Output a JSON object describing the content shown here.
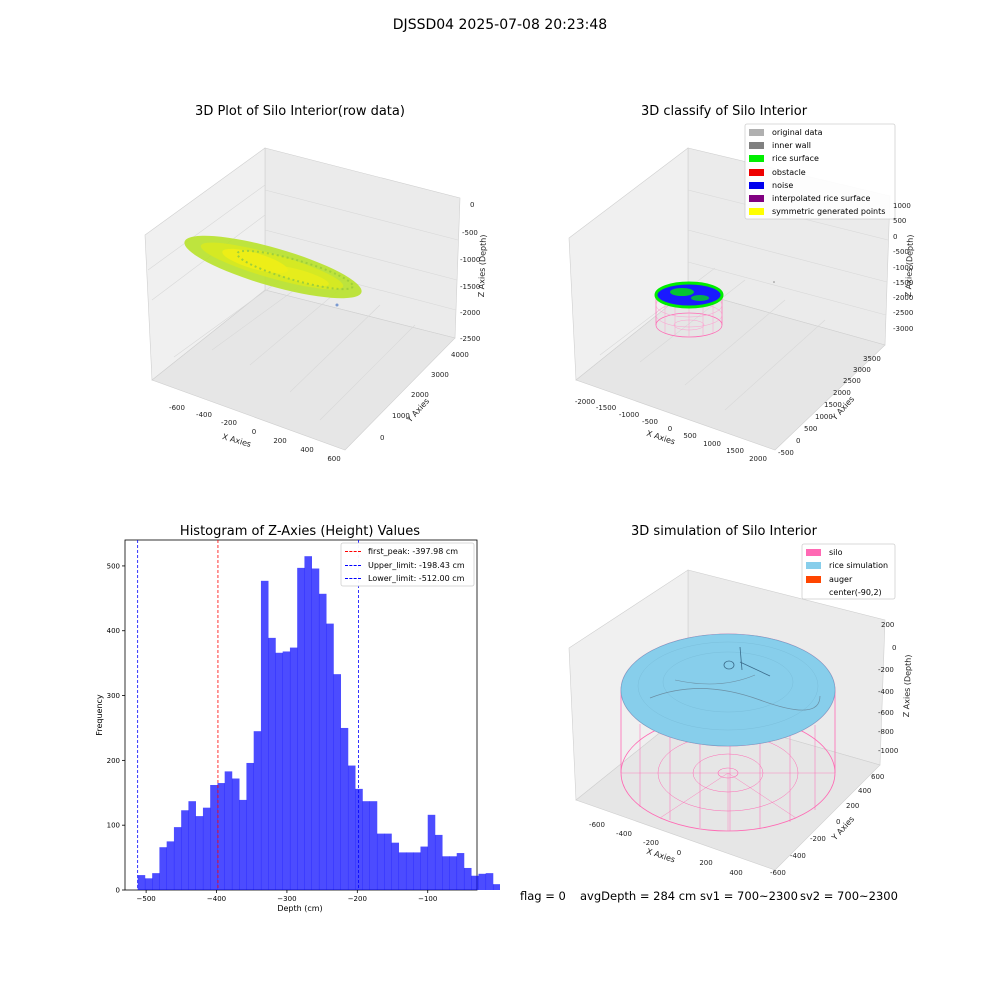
{
  "suptitle": "DJSSD04 2025-07-08 20:23:48",
  "panel1": {
    "title": "3D Plot of Silo Interior(row data)",
    "xlabel": "X Axies",
    "ylabel": "Y Axies",
    "zlabel": "Z Axies (Depth)",
    "xticks": [
      "-600",
      "-400",
      "-200",
      "0",
      "200",
      "400",
      "600"
    ],
    "yticks": [
      "0",
      "1000",
      "2000",
      "3000",
      "4000"
    ],
    "zticks": [
      "0",
      "-500",
      "-1000",
      "-1500",
      "-2000",
      "-2500"
    ]
  },
  "panel2": {
    "title": "3D classify of Silo Interior",
    "xlabel": "X Axies",
    "ylabel": "Y Axies",
    "zlabel": "Z Axies (Depth)",
    "xticks": [
      "-2000",
      "-1500",
      "-1000",
      "-500",
      "0",
      "500",
      "1000",
      "1500",
      "2000"
    ],
    "yticks": [
      "-500",
      "0",
      "500",
      "1000",
      "1500",
      "2000",
      "2500",
      "3000",
      "3500"
    ],
    "zticks": [
      "1000",
      "500",
      "0",
      "-500",
      "-1000",
      "-1500",
      "-2000",
      "-2500",
      "-3000"
    ],
    "legend": [
      {
        "label": "original data",
        "color": "#b0b0b0"
      },
      {
        "label": "inner wall",
        "color": "#808080"
      },
      {
        "label": "rice surface",
        "color": "#00ee00"
      },
      {
        "label": "obstacle",
        "color": "#ee0000"
      },
      {
        "label": "noise",
        "color": "#0000ee"
      },
      {
        "label": "interpolated rice surface",
        "color": "#800080"
      },
      {
        "label": "symmetric generated points",
        "color": "#ffff00"
      }
    ]
  },
  "panel3": {
    "title": "Histogram of Z-Axies (Height) Values",
    "legend": [
      {
        "label": "first_peak: -397.98 cm",
        "color": "#ff0000"
      },
      {
        "label": "Upper_limit: -198.43 cm",
        "color": "#0000ff"
      },
      {
        "label": "Lower_limit: -512.00 cm",
        "color": "#0000ff"
      }
    ]
  },
  "panel4": {
    "title": "3D simulation of Silo Interior",
    "xlabel": "X Axies",
    "ylabel": "Y Axies",
    "zlabel": "Z Axies (Depth)",
    "xticks": [
      "-600",
      "-400",
      "-200",
      "0",
      "200",
      "400"
    ],
    "yticks": [
      "-600",
      "-400",
      "-200",
      "0",
      "200",
      "400",
      "600"
    ],
    "zticks": [
      "200",
      "0",
      "-200",
      "-400",
      "-600",
      "-800",
      "-1000"
    ],
    "legend": [
      {
        "label": "silo",
        "color": "#ff69b4"
      },
      {
        "label": "rice simulation",
        "color": "#87ceeb"
      },
      {
        "label": "auger",
        "color": "#ff4500"
      },
      {
        "label": "center(-90,2)",
        "color": ""
      }
    ]
  },
  "footer": {
    "flag": "flag = 0",
    "avgDepth": "avgDepth = 284 cm",
    "sv1": "sv1 = 700~2300",
    "sv2": "sv2 = 700~2300"
  },
  "chart_data": {
    "type": "bar",
    "title": "Histogram of Z-Axies (Height) Values",
    "xlabel": "Depth (cm)",
    "ylabel": "Frequency",
    "xlim": [
      -530,
      -30
    ],
    "ylim": [
      0,
      540
    ],
    "xticks": [
      -500,
      -400,
      -300,
      -200,
      -100
    ],
    "yticks": [
      0,
      100,
      200,
      300,
      400,
      500
    ],
    "bin_start": -512,
    "bin_width": 10.3,
    "values": [
      23,
      18,
      26,
      66,
      75,
      97,
      123,
      137,
      114,
      127,
      162,
      165,
      183,
      172,
      139,
      196,
      245,
      477,
      389,
      366,
      368,
      374,
      497,
      515,
      496,
      457,
      411,
      333,
      250,
      192,
      156,
      137,
      137,
      87,
      87,
      73,
      58,
      58,
      58,
      67,
      116,
      85,
      52,
      52,
      57,
      34,
      22,
      25,
      26,
      9
    ],
    "bar_color": "#0000ff",
    "vlines": [
      {
        "x": -397.98,
        "label": "first_peak: -397.98 cm",
        "color": "#ff0000"
      },
      {
        "x": -198.43,
        "label": "Upper_limit: -198.43 cm",
        "color": "#0000ff"
      },
      {
        "x": -512.0,
        "label": "Lower_limit: -512.00 cm",
        "color": "#0000ff"
      }
    ],
    "legend_position": "top-right"
  }
}
